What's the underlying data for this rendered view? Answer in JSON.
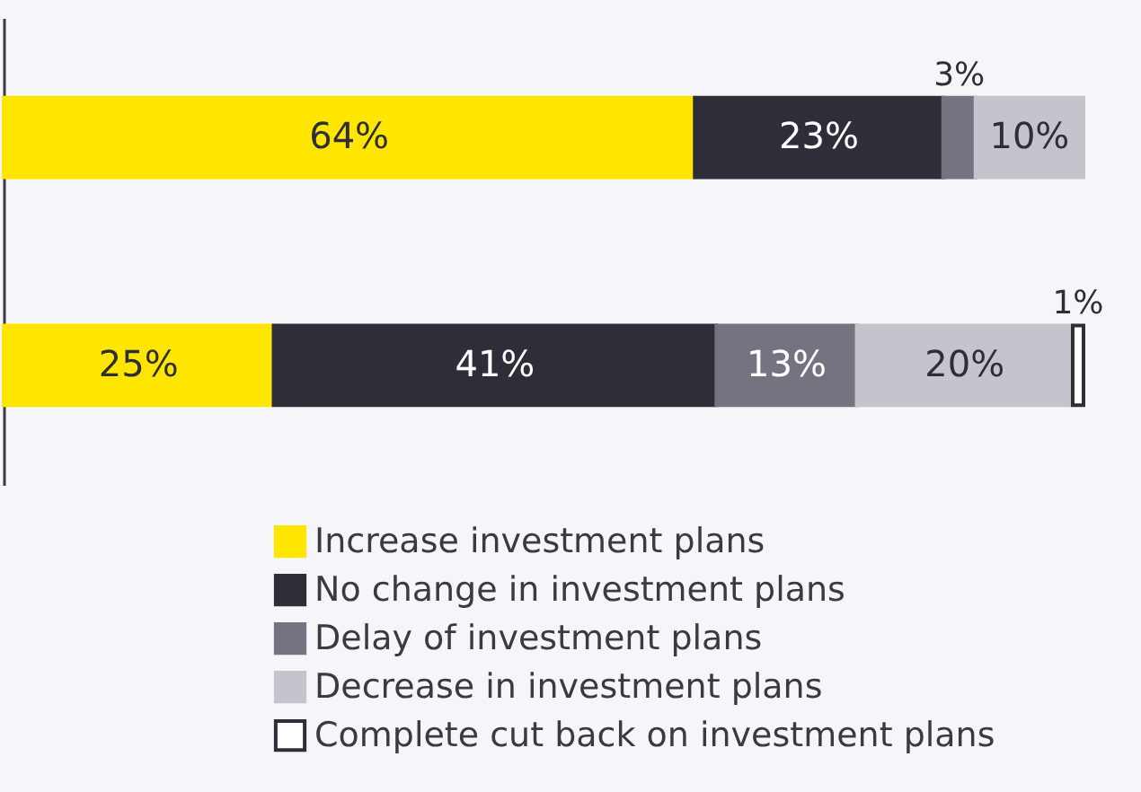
{
  "chart_data": {
    "type": "bar",
    "orientation": "horizontal",
    "stacked": true,
    "categories": [
      null,
      null
    ],
    "xlim": [
      0,
      100
    ],
    "legend": "bottom",
    "series": [
      {
        "name": "Increase investment plans",
        "color": "#ffe600",
        "values": [
          64,
          25
        ],
        "value_labels": [
          "64%",
          "25%"
        ]
      },
      {
        "name": "No change in investment plans",
        "color": "#2e2e38",
        "values": [
          23,
          41
        ],
        "value_labels": [
          "23%",
          "41%"
        ]
      },
      {
        "name": "Delay of investment plans",
        "color": "#747480",
        "values": [
          3,
          13
        ],
        "value_labels": [
          "3%",
          "13%"
        ]
      },
      {
        "name": "Decrease in investment plans",
        "color": "#c4c4cd",
        "values": [
          10,
          20
        ],
        "value_labels": [
          "10%",
          "20%"
        ]
      },
      {
        "name": "Complete cut back on investment plans",
        "color": "#ffffff",
        "values": [
          null,
          1
        ],
        "value_labels": [
          null,
          "1%"
        ]
      }
    ]
  }
}
